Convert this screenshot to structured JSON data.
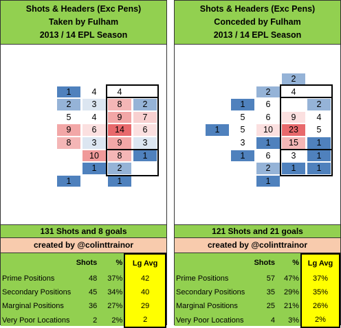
{
  "chart_data": [
    {
      "type": "heatmap",
      "title_lines": [
        "Shots & Headers (Exc Pens)",
        "Taken by Fulham",
        "2013 / 14 EPL Season"
      ],
      "cells": [
        {
          "col": 2,
          "row": 1,
          "value": 1,
          "color": "#4f81bd"
        },
        {
          "col": 3,
          "row": 1,
          "value": 4,
          "color": "#ffffff"
        },
        {
          "col": 4,
          "row": 1,
          "value": 4,
          "color": "#ffffff"
        },
        {
          "col": 2,
          "row": 2,
          "value": 2,
          "color": "#95b3d7"
        },
        {
          "col": 3,
          "row": 2,
          "value": 3,
          "color": "#dce6f1"
        },
        {
          "col": 4,
          "row": 2,
          "value": 8,
          "color": "#f4b6b6"
        },
        {
          "col": 5,
          "row": 2,
          "value": 2,
          "color": "#95b3d7"
        },
        {
          "col": 2,
          "row": 3,
          "value": 5,
          "color": "#ffffff"
        },
        {
          "col": 3,
          "row": 3,
          "value": 4,
          "color": "#ffffff"
        },
        {
          "col": 4,
          "row": 3,
          "value": 9,
          "color": "#f2a7a7"
        },
        {
          "col": 5,
          "row": 3,
          "value": 7,
          "color": "#f8d0d0"
        },
        {
          "col": 2,
          "row": 4,
          "value": 9,
          "color": "#f2a7a7"
        },
        {
          "col": 3,
          "row": 4,
          "value": 6,
          "color": "#fbe0e0"
        },
        {
          "col": 4,
          "row": 4,
          "value": 14,
          "color": "#e8696c"
        },
        {
          "col": 5,
          "row": 4,
          "value": 6,
          "color": "#fbe0e0"
        },
        {
          "col": 2,
          "row": 5,
          "value": 8,
          "color": "#f4b6b6"
        },
        {
          "col": 3,
          "row": 5,
          "value": 3,
          "color": "#dce6f1"
        },
        {
          "col": 4,
          "row": 5,
          "value": 9,
          "color": "#f2a7a7"
        },
        {
          "col": 5,
          "row": 5,
          "value": 3,
          "color": "#dce6f1"
        },
        {
          "col": 3,
          "row": 6,
          "value": 10,
          "color": "#f09a9a"
        },
        {
          "col": 4,
          "row": 6,
          "value": 8,
          "color": "#f4b6b6"
        },
        {
          "col": 5,
          "row": 6,
          "value": 1,
          "color": "#4f81bd"
        },
        {
          "col": 3,
          "row": 7,
          "value": 1,
          "color": "#4f81bd"
        },
        {
          "col": 4,
          "row": 7,
          "value": 2,
          "color": "#95b3d7"
        },
        {
          "col": 2,
          "row": 8,
          "value": 1,
          "color": "#4f81bd"
        },
        {
          "col": 4,
          "row": 8,
          "value": 1,
          "color": "#4f81bd"
        }
      ],
      "shots_line": "131 Shots and 8 goals",
      "credit": "created by @colinttrainor",
      "stats": {
        "headers": [
          "Shots",
          "%",
          "Lg Avg"
        ],
        "rows": [
          {
            "label": "Prime Positions",
            "shots": "48",
            "pct": "37%",
            "lg": "42"
          },
          {
            "label": "Secondary Positions",
            "shots": "45",
            "pct": "34%",
            "lg": "40"
          },
          {
            "label": "Marginal Positions",
            "shots": "36",
            "pct": "27%",
            "lg": "29"
          },
          {
            "label": "Very Poor Locations",
            "shots": "2",
            "pct": "2%",
            "lg": "2"
          }
        ]
      }
    },
    {
      "type": "heatmap",
      "title_lines": [
        "Shots & Headers (Exc Pens)",
        "Conceded by Fulham",
        "2013 / 14 EPL Season"
      ],
      "cells": [
        {
          "col": 4,
          "row": 0,
          "value": 2,
          "color": "#95b3d7"
        },
        {
          "col": 3,
          "row": 1,
          "value": 2,
          "color": "#95b3d7"
        },
        {
          "col": 4,
          "row": 1,
          "value": 4,
          "color": "#ffffff"
        },
        {
          "col": 2,
          "row": 2,
          "value": 1,
          "color": "#4f81bd"
        },
        {
          "col": 3,
          "row": 2,
          "value": 6,
          "color": "#ffffff"
        },
        {
          "col": 5,
          "row": 2,
          "value": 2,
          "color": "#95b3d7"
        },
        {
          "col": 2,
          "row": 3,
          "value": 5,
          "color": "#ffffff"
        },
        {
          "col": 3,
          "row": 3,
          "value": 6,
          "color": "#ffffff"
        },
        {
          "col": 4,
          "row": 3,
          "value": 9,
          "color": "#fbe0e0"
        },
        {
          "col": 5,
          "row": 3,
          "value": 4,
          "color": "#ffffff"
        },
        {
          "col": 1,
          "row": 4,
          "value": 1,
          "color": "#4f81bd"
        },
        {
          "col": 2,
          "row": 4,
          "value": 5,
          "color": "#ffffff"
        },
        {
          "col": 3,
          "row": 4,
          "value": 10,
          "color": "#fbe0e0"
        },
        {
          "col": 4,
          "row": 4,
          "value": 23,
          "color": "#e8696c"
        },
        {
          "col": 5,
          "row": 4,
          "value": 5,
          "color": "#ffffff"
        },
        {
          "col": 2,
          "row": 5,
          "value": 3,
          "color": "#ffffff"
        },
        {
          "col": 3,
          "row": 5,
          "value": 1,
          "color": "#4f81bd"
        },
        {
          "col": 4,
          "row": 5,
          "value": 15,
          "color": "#f4b6b6"
        },
        {
          "col": 5,
          "row": 5,
          "value": 1,
          "color": "#4f81bd"
        },
        {
          "col": 2,
          "row": 6,
          "value": 1,
          "color": "#4f81bd"
        },
        {
          "col": 3,
          "row": 6,
          "value": 6,
          "color": "#ffffff"
        },
        {
          "col": 4,
          "row": 6,
          "value": 3,
          "color": "#ffffff"
        },
        {
          "col": 5,
          "row": 6,
          "value": 1,
          "color": "#4f81bd"
        },
        {
          "col": 3,
          "row": 7,
          "value": 2,
          "color": "#95b3d7"
        },
        {
          "col": 4,
          "row": 7,
          "value": 1,
          "color": "#4f81bd"
        },
        {
          "col": 5,
          "row": 7,
          "value": 1,
          "color": "#4f81bd"
        },
        {
          "col": 3,
          "row": 8,
          "value": 1,
          "color": "#4f81bd"
        }
      ],
      "shots_line": "121 Shots and 21 goals",
      "credit": "created by @colinttrainor",
      "stats": {
        "headers": [
          "Shots",
          "%",
          "Lg Avg"
        ],
        "rows": [
          {
            "label": "Prime Positions",
            "shots": "57",
            "pct": "47%",
            "lg": "37%"
          },
          {
            "label": "Secondary Positions",
            "shots": "35",
            "pct": "29%",
            "lg": "35%"
          },
          {
            "label": "Marginal Positions",
            "shots": "25",
            "pct": "21%",
            "lg": "26%"
          },
          {
            "label": "Very Poor Locations",
            "shots": "4",
            "pct": "3%",
            "lg": "2%"
          }
        ]
      }
    }
  ]
}
